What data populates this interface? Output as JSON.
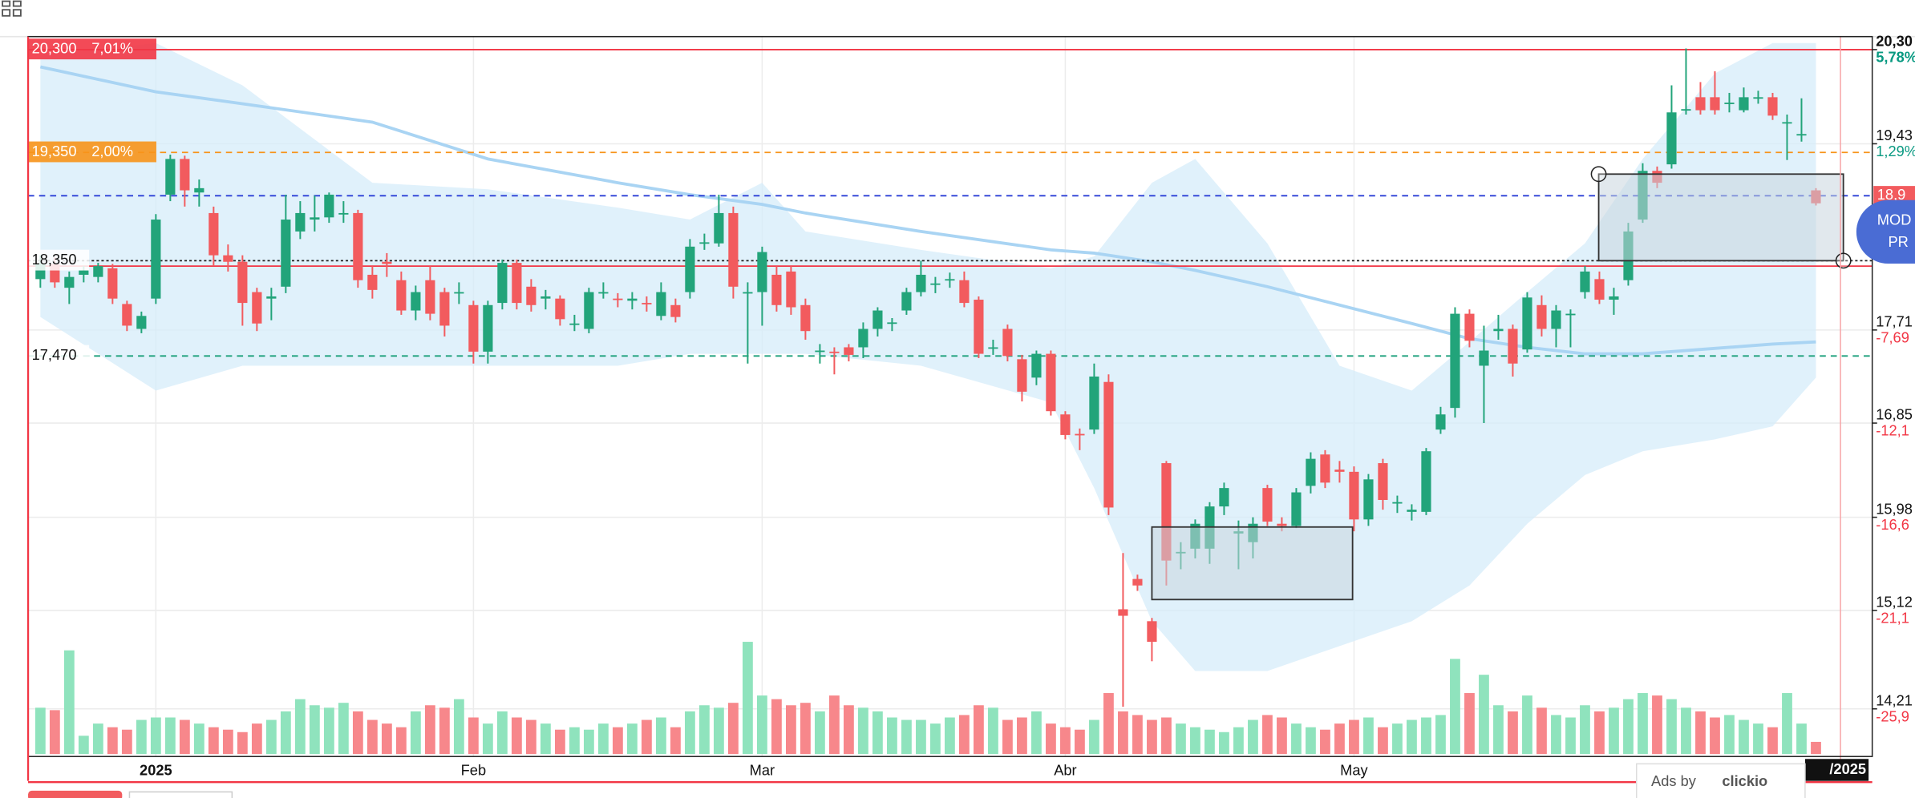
{
  "chart_data": {
    "type": "candlestick",
    "xlim": [
      -0.85,
      126.9
    ],
    "ylim": [
      13.77,
      20.42
    ],
    "volume_lim": [
      0,
      588
    ],
    "xticks": [
      {
        "value": 8,
        "label": "2025"
      },
      {
        "value": 30,
        "label": "Feb"
      },
      {
        "value": 50,
        "label": "Mar"
      },
      {
        "value": 71,
        "label": "Abr"
      },
      {
        "value": 91,
        "label": "May"
      }
    ],
    "yticks": [
      {
        "value": 20.3,
        "label": "20,30"
      },
      {
        "value": 19.43,
        "label": "19,43"
      },
      {
        "value": 17.71,
        "label": "17,71"
      },
      {
        "value": 16.85,
        "label": "16,85"
      },
      {
        "value": 15.98,
        "label": "15,98"
      },
      {
        "value": 15.12,
        "label": "15,12"
      },
      {
        "value": 14.21,
        "label": "14,21"
      }
    ],
    "ytick_percent_labels": [
      "5,78%",
      "1,29%",
      "-7,69",
      "-12,1",
      "-16,6",
      "-21,1",
      "-25,9"
    ],
    "grid": true,
    "colors": {
      "up": "#22a47a",
      "down": "#f25b5e",
      "volume_up": "#8fe3bd",
      "volume_down": "#f7878b",
      "band": "#d6ecfa",
      "ma": "#a9d4f3"
    },
    "open": [
      18.18,
      18.32,
      18.1,
      18.22,
      18.2,
      18.28,
      17.95,
      17.72,
      18.0,
      18.96,
      19.29,
      18.98,
      18.79,
      18.4,
      18.34,
      18.06,
      18.0,
      18.11,
      18.62,
      18.73,
      18.75,
      18.79,
      18.79,
      18.22,
      18.34,
      18.17,
      17.89,
      18.17,
      18.06,
      18.06,
      17.94,
      17.51,
      17.96,
      18.33,
      18.11,
      18.0,
      18.0,
      17.77,
      17.72,
      18.06,
      18.0,
      17.98,
      17.96,
      17.84,
      17.94,
      18.06,
      18.51,
      18.51,
      18.79,
      18.05,
      18.06,
      18.22,
      18.25,
      17.94,
      17.51,
      17.51,
      17.55,
      17.55,
      17.72,
      17.77,
      17.89,
      18.06,
      18.14,
      18.18,
      18.17,
      17.99,
      17.55,
      17.72,
      17.44,
      17.27,
      17.49,
      16.93,
      16.75,
      16.79,
      17.23,
      15.13,
      15.41,
      15.02,
      16.48,
      15.65,
      15.69,
      15.69,
      16.08,
      15.83,
      15.75,
      16.25,
      15.92,
      15.9,
      16.27,
      16.56,
      16.42,
      16.4,
      15.96,
      16.48,
      16.12,
      16.03,
      16.03,
      16.79,
      16.99,
      17.86,
      17.38,
      17.7,
      17.72,
      17.53,
      17.94,
      17.72,
      17.85,
      18.06,
      18.18,
      17.99,
      18.17,
      18.73,
      19.18,
      19.24,
      19.75,
      19.86,
      19.86,
      19.8,
      19.74,
      19.86,
      19.86,
      19.63,
      19.52,
      19.0
    ],
    "high": [
      18.4,
      18.38,
      18.25,
      18.3,
      18.33,
      18.32,
      17.98,
      17.88,
      18.78,
      19.33,
      19.32,
      19.1,
      18.85,
      18.5,
      18.4,
      18.1,
      18.1,
      18.96,
      18.9,
      18.95,
      18.98,
      18.9,
      18.82,
      18.3,
      18.42,
      18.25,
      18.12,
      18.3,
      18.1,
      18.15,
      17.98,
      17.98,
      18.36,
      18.36,
      18.18,
      18.08,
      18.03,
      17.85,
      18.1,
      18.15,
      18.05,
      18.06,
      18.02,
      18.15,
      18.0,
      18.55,
      18.6,
      18.96,
      18.85,
      18.15,
      18.48,
      18.3,
      18.3,
      18.0,
      17.58,
      17.55,
      17.58,
      17.78,
      17.92,
      17.82,
      18.1,
      18.35,
      18.2,
      18.24,
      18.25,
      18.02,
      17.62,
      17.76,
      17.48,
      17.52,
      17.52,
      16.96,
      16.8,
      17.4,
      17.3,
      15.65,
      15.45,
      15.05,
      16.5,
      15.75,
      15.96,
      16.12,
      16.3,
      15.95,
      15.98,
      16.28,
      15.98,
      16.25,
      16.58,
      16.6,
      16.5,
      16.45,
      16.38,
      16.52,
      16.18,
      16.1,
      16.62,
      17.0,
      17.92,
      17.9,
      17.75,
      17.85,
      17.76,
      18.06,
      18.03,
      17.94,
      17.9,
      18.3,
      18.25,
      18.1,
      18.7,
      19.25,
      19.22,
      19.97,
      20.31,
      20.0,
      20.1,
      19.9,
      19.95,
      19.92,
      19.9,
      19.7,
      19.85,
      19.02
    ],
    "low": [
      18.1,
      18.1,
      17.95,
      18.15,
      18.15,
      17.95,
      17.7,
      17.68,
      17.95,
      18.9,
      18.85,
      18.85,
      18.3,
      18.25,
      17.75,
      17.7,
      17.8,
      18.05,
      18.55,
      18.62,
      18.7,
      18.7,
      18.1,
      18.0,
      18.2,
      17.85,
      17.8,
      17.8,
      17.65,
      17.95,
      17.4,
      17.4,
      17.9,
      17.9,
      17.88,
      17.9,
      17.75,
      17.7,
      17.68,
      18.0,
      17.92,
      17.9,
      17.88,
      17.8,
      17.78,
      18.0,
      18.45,
      18.48,
      18.0,
      17.4,
      17.75,
      17.88,
      17.85,
      17.62,
      17.4,
      17.3,
      17.42,
      17.45,
      17.65,
      17.7,
      17.85,
      18.02,
      18.05,
      18.1,
      17.92,
      17.45,
      17.48,
      17.42,
      17.05,
      17.2,
      16.92,
      16.7,
      16.6,
      16.75,
      16.0,
      14.23,
      15.3,
      14.65,
      15.35,
      15.5,
      15.6,
      15.55,
      16.0,
      15.5,
      15.6,
      15.9,
      15.85,
      15.88,
      16.2,
      16.25,
      16.3,
      15.85,
      15.9,
      16.05,
      16.02,
      15.95,
      16.0,
      16.75,
      16.9,
      17.55,
      16.85,
      17.62,
      17.28,
      17.5,
      17.65,
      17.55,
      17.55,
      18.0,
      17.95,
      17.85,
      18.12,
      18.7,
      19.02,
      19.2,
      19.7,
      19.7,
      19.7,
      19.72,
      19.72,
      19.8,
      19.65,
      19.28,
      19.45,
      18.86
    ],
    "close": [
      18.32,
      18.15,
      18.2,
      18.26,
      18.3,
      18.0,
      17.75,
      17.84,
      18.73,
      19.29,
      19.0,
      19.02,
      18.4,
      18.34,
      17.96,
      17.77,
      18.02,
      18.73,
      18.79,
      18.75,
      18.96,
      18.79,
      18.17,
      18.08,
      18.32,
      17.89,
      18.06,
      17.86,
      17.75,
      18.06,
      17.51,
      17.94,
      18.33,
      17.96,
      17.94,
      18.02,
      17.81,
      17.77,
      18.06,
      18.06,
      17.99,
      18.0,
      17.95,
      18.06,
      17.83,
      18.48,
      18.52,
      18.79,
      18.11,
      18.06,
      18.43,
      17.94,
      17.92,
      17.7,
      17.52,
      17.5,
      17.48,
      17.72,
      17.89,
      17.78,
      18.06,
      18.22,
      18.14,
      18.18,
      17.96,
      17.49,
      17.55,
      17.47,
      17.14,
      17.49,
      16.96,
      16.74,
      16.74,
      17.28,
      16.07,
      15.07,
      15.35,
      14.83,
      15.58,
      15.66,
      15.92,
      16.08,
      16.25,
      15.85,
      15.92,
      15.94,
      15.9,
      16.21,
      16.52,
      16.3,
      16.4,
      15.96,
      16.33,
      16.14,
      16.12,
      16.05,
      16.59,
      16.93,
      17.86,
      17.61,
      17.52,
      17.72,
      17.4,
      18.01,
      17.72,
      17.89,
      17.86,
      18.25,
      17.99,
      18.02,
      18.62,
      19.18,
      19.07,
      19.72,
      19.75,
      19.74,
      19.74,
      19.81,
      19.86,
      19.86,
      19.69,
      19.63,
      19.52,
      18.88
    ],
    "volume": [
      38,
      36,
      85,
      15,
      25,
      22,
      20,
      28,
      30,
      30,
      28,
      25,
      22,
      20,
      18,
      25,
      28,
      35,
      45,
      40,
      38,
      42,
      35,
      28,
      25,
      22,
      35,
      40,
      38,
      45,
      30,
      25,
      35,
      30,
      28,
      25,
      20,
      22,
      20,
      25,
      22,
      25,
      28,
      30,
      22,
      35,
      40,
      38,
      42,
      92,
      48,
      45,
      40,
      42,
      35,
      48,
      40,
      38,
      35,
      30,
      28,
      28,
      25,
      30,
      32,
      40,
      38,
      28,
      30,
      35,
      25,
      22,
      20,
      28,
      50,
      35,
      32,
      28,
      30,
      25,
      22,
      20,
      18,
      22,
      28,
      32,
      30,
      25,
      22,
      20,
      25,
      28,
      30,
      22,
      25,
      28,
      30,
      32,
      78,
      50,
      65,
      40,
      35,
      48,
      38,
      32,
      30,
      40,
      35,
      38,
      45,
      50,
      48,
      45,
      38,
      35,
      30,
      32,
      28,
      25,
      22,
      50,
      25,
      10
    ],
    "bands": {
      "x": [
        0,
        8,
        14,
        23,
        31,
        40,
        45,
        50,
        53,
        61,
        70,
        73,
        77,
        80,
        85,
        90,
        95,
        99,
        103,
        107,
        111,
        116,
        120,
        123
      ],
      "upper": [
        20.25,
        20.36,
        19.97,
        19.07,
        19.01,
        18.84,
        18.73,
        19.07,
        18.62,
        18.45,
        18.28,
        18.39,
        19.07,
        19.29,
        18.51,
        17.38,
        17.15,
        17.6,
        18.06,
        18.51,
        19.29,
        20.08,
        20.36,
        20.36
      ],
      "lower": [
        17.83,
        17.15,
        17.38,
        17.38,
        17.38,
        17.38,
        17.49,
        17.49,
        17.49,
        17.38,
        17.04,
        16.25,
        15.02,
        14.56,
        14.56,
        14.79,
        15.02,
        15.35,
        15.92,
        16.37,
        16.59,
        16.7,
        16.82,
        17.27
      ],
      "ma": [
        20.14,
        19.91,
        19.8,
        19.63,
        19.29,
        19.07,
        18.96,
        18.87,
        18.79,
        18.62,
        18.45,
        18.42,
        18.34,
        18.26,
        18.11,
        17.94,
        17.77,
        17.63,
        17.55,
        17.49,
        17.49,
        17.54,
        17.58,
        17.6
      ]
    },
    "levels": [
      {
        "value": 20.3,
        "label": "20,300",
        "percent": "7,01%",
        "color": "#f23645",
        "style": "solid"
      },
      {
        "value": 19.35,
        "label": "19,350",
        "percent": "2,00%",
        "color": "#f7931a",
        "style": "dashed"
      },
      {
        "value": 18.95,
        "color": "#2b3fd6",
        "style": "dashed"
      },
      {
        "value": 18.35,
        "label": "18,350",
        "color": "#222222",
        "style": "dotted"
      },
      {
        "value": 18.3,
        "color": "#f23645",
        "style": "solid"
      },
      {
        "value": 17.47,
        "label": "17,470",
        "color": "#1a9f7a",
        "style": "dashed"
      }
    ],
    "boxes": [
      {
        "x0": 77.0,
        "x1": 90.9,
        "y0": 15.89,
        "y1": 15.22
      },
      {
        "x0": 107.95,
        "x1": 124.9,
        "y0": 19.15,
        "y1": 18.35
      }
    ],
    "current_price": {
      "value": 18.95,
      "label": "18,9"
    },
    "cursor": {
      "x": 124.7,
      "label": "/2025"
    }
  },
  "ui": {
    "ads_prefix": "Ads by",
    "ads_brand": "clickio",
    "side_button": [
      "MOD",
      "PR"
    ]
  }
}
